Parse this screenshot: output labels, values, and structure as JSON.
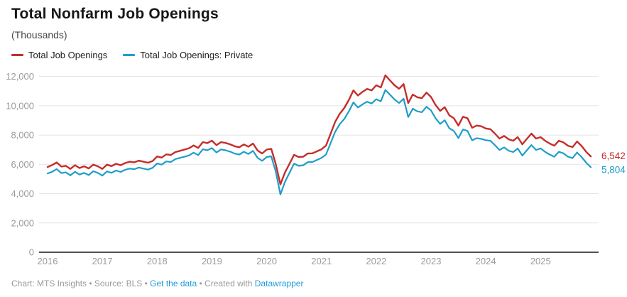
{
  "header": {
    "title": "Total Nonfarm Job Openings",
    "subtitle": "(Thousands)"
  },
  "legend": {
    "items": [
      {
        "label": "Total Job Openings",
        "color": "#c42e2a"
      },
      {
        "label": "Total Job Openings: Private",
        "color": "#1f9ec9"
      }
    ]
  },
  "footer": {
    "text1": "Chart: MTS Insights • Source: BLS • ",
    "link1": "Get the data",
    "text2": " • Created with ",
    "link2": "Datawrapper"
  },
  "chart_data": {
    "type": "line",
    "title": "Total Nonfarm Job Openings",
    "ylabel": "(Thousands)",
    "frequency": "monthly",
    "x_start": "2016-01",
    "x_end": "2025-12",
    "x_tick_labels": [
      "2016",
      "2017",
      "2018",
      "2019",
      "2020",
      "2021",
      "2022",
      "2023",
      "2024",
      "2025"
    ],
    "y_ticks": [
      0,
      2000,
      4000,
      6000,
      8000,
      10000,
      12000
    ],
    "ylim": [
      0,
      12400
    ],
    "grid": "horizontal",
    "legend_position": "top-left",
    "series": [
      {
        "name": "Total Job Openings",
        "color": "#c42e2a",
        "end_label": "6,542",
        "values": [
          5820,
          5950,
          6130,
          5850,
          5900,
          5690,
          5940,
          5750,
          5870,
          5720,
          5980,
          5870,
          5690,
          5980,
          5880,
          6040,
          5940,
          6090,
          6180,
          6140,
          6250,
          6180,
          6110,
          6230,
          6540,
          6460,
          6680,
          6640,
          6840,
          6920,
          7010,
          7100,
          7290,
          7120,
          7520,
          7450,
          7620,
          7310,
          7520,
          7460,
          7370,
          7230,
          7170,
          7360,
          7210,
          7420,
          6950,
          6740,
          7010,
          7060,
          6010,
          4630,
          5440,
          6040,
          6650,
          6500,
          6520,
          6740,
          6750,
          6890,
          7030,
          7280,
          8090,
          8900,
          9450,
          9850,
          10400,
          11050,
          10700,
          10950,
          11150,
          11050,
          11400,
          11250,
          12080,
          11740,
          11400,
          11160,
          11480,
          10180,
          10770,
          10580,
          10520,
          10900,
          10600,
          10050,
          9650,
          9900,
          9350,
          9150,
          8650,
          9250,
          9150,
          8500,
          8650,
          8600,
          8450,
          8400,
          8100,
          7760,
          7940,
          7710,
          7610,
          7860,
          7370,
          7740,
          8100,
          7760,
          7860,
          7610,
          7420,
          7270,
          7610,
          7500,
          7270,
          7180,
          7560,
          7250,
          6850,
          6542
        ]
      },
      {
        "name": "Total Job Openings: Private",
        "color": "#1f9ec9",
        "end_label": "5,804",
        "values": [
          5380,
          5490,
          5680,
          5400,
          5450,
          5250,
          5490,
          5300,
          5420,
          5270,
          5530,
          5420,
          5230,
          5520,
          5420,
          5580,
          5480,
          5630,
          5710,
          5670,
          5780,
          5710,
          5640,
          5760,
          6060,
          5980,
          6200,
          6160,
          6360,
          6440,
          6520,
          6610,
          6800,
          6630,
          7030,
          6960,
          7110,
          6810,
          7020,
          6960,
          6870,
          6730,
          6670,
          6860,
          6710,
          6920,
          6450,
          6240,
          6500,
          6550,
          5500,
          3950,
          4800,
          5420,
          6050,
          5900,
          5930,
          6150,
          6160,
          6300,
          6440,
          6670,
          7450,
          8220,
          8740,
          9100,
          9620,
          10230,
          9880,
          10100,
          10280,
          10150,
          10450,
          10300,
          11080,
          10760,
          10430,
          10190,
          10480,
          9230,
          9800,
          9620,
          9560,
          9930,
          9680,
          9150,
          8760,
          9010,
          8470,
          8280,
          7790,
          8380,
          8280,
          7640,
          7790,
          7740,
          7650,
          7610,
          7310,
          6980,
          7160,
          6930,
          6840,
          7080,
          6600,
          6960,
          7320,
          6980,
          7090,
          6850,
          6670,
          6520,
          6860,
          6750,
          6520,
          6430,
          6810,
          6500,
          6110,
          5804
        ]
      }
    ]
  }
}
